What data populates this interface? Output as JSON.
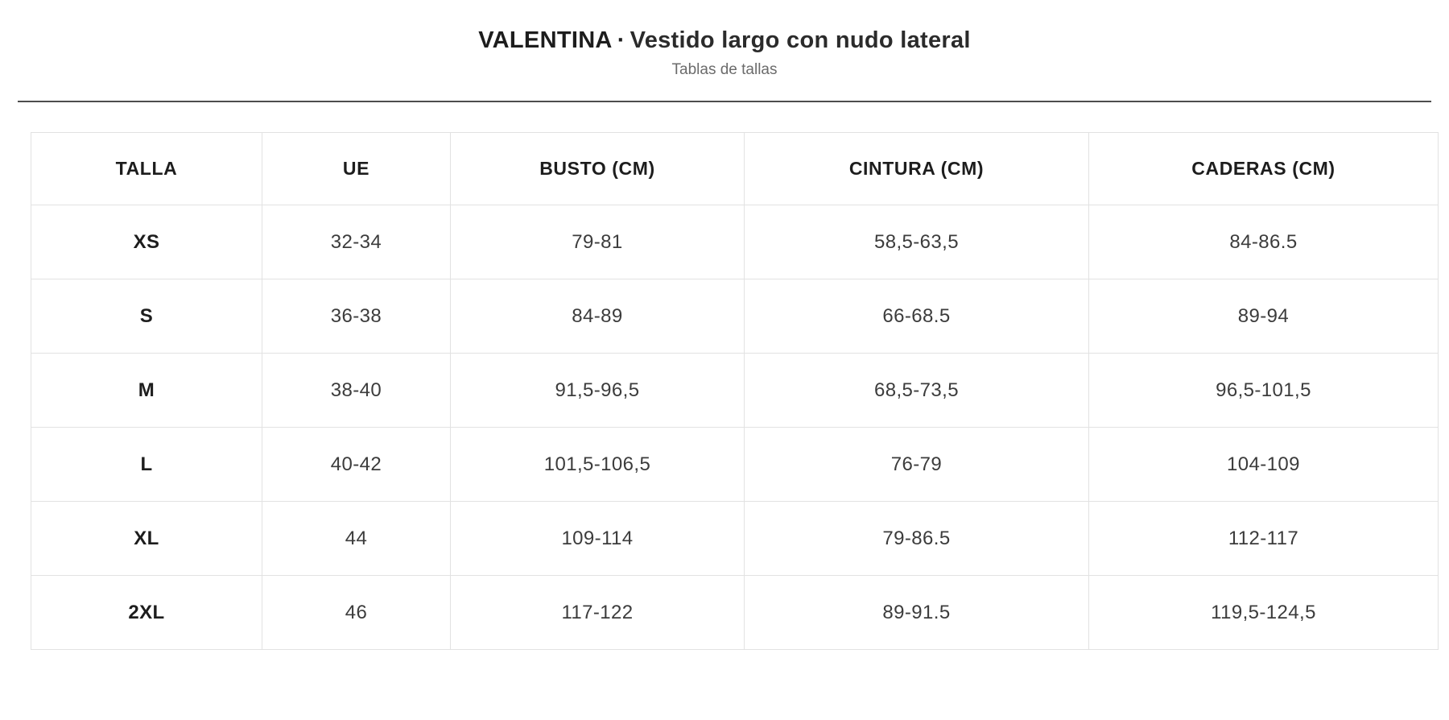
{
  "header": {
    "brand": "VALENTINA",
    "separator": "·",
    "product": "Vestido largo con nudo lateral",
    "subtitle": "Tablas de tallas"
  },
  "colors": {
    "background": "#ffffff",
    "text_dark": "#1d1d1d",
    "text_body": "#3c3c3c",
    "text_muted": "#6b6b6b",
    "table_border": "#e2e2e2",
    "header_rule": "#4d4d4d"
  },
  "size_table": {
    "columns": [
      "TALLA",
      "UE",
      "BUSTO (CM)",
      "CINTURA (CM)",
      "CADERAS (CM)"
    ],
    "rows": [
      [
        "XS",
        "32-34",
        "79-81",
        "58,5-63,5",
        "84-86.5"
      ],
      [
        "S",
        "36-38",
        "84-89",
        "66-68.5",
        "89-94"
      ],
      [
        "M",
        "38-40",
        "91,5-96,5",
        "68,5-73,5",
        "96,5-101,5"
      ],
      [
        "L",
        "40-42",
        "101,5-106,5",
        "76-79",
        "104-109"
      ],
      [
        "XL",
        "44",
        "109-114",
        "79-86.5",
        "112-117"
      ],
      [
        "2XL",
        "46",
        "117-122",
        "89-91.5",
        "119,5-124,5"
      ]
    ]
  }
}
